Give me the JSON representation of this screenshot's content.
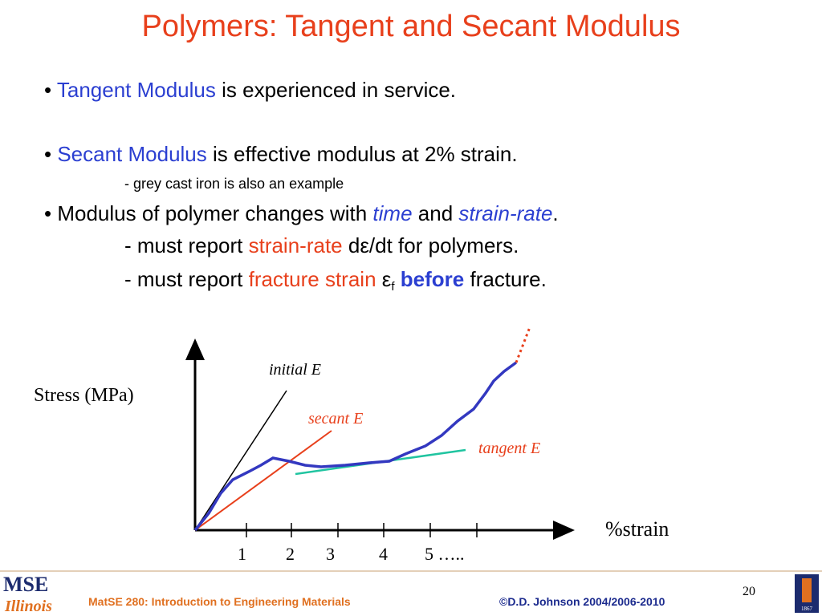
{
  "title": "Polymers: Tangent and Secant Modulus",
  "bullets": [
    [
      "• ",
      "Tangent Modulus",
      " is experienced in service."
    ],
    [
      "• ",
      "Secant Modulus",
      " is effective modulus at 2% strain."
    ],
    [
      "- grey cast iron is also an example"
    ],
    [
      "• ",
      "Modulus of polymer changes with ",
      "time",
      " and ",
      "strain-rate",
      "."
    ],
    [
      "- must report ",
      "strain-rate",
      " dε/dt for polymers."
    ],
    [
      "- must report ",
      "fracture strain",
      " ε",
      "f",
      " ",
      "before",
      " fracture."
    ]
  ],
  "diagram": {
    "y_label": "Stress (MPa)",
    "x_label": "%strain",
    "curve_labels": [
      "initial E",
      "secant E",
      "tangent E"
    ],
    "x_ticks": [
      "1",
      "2",
      "3",
      "4",
      "5 ….."
    ]
  },
  "footer": {
    "logo_top": "MSE",
    "logo_bottom": "Illinois",
    "course": "MatSE 280: Introduction to Engineering Materials",
    "copyright": "©D.D. Johnson 2004/2006-2010",
    "page": "20",
    "seal_year": "1867"
  }
}
